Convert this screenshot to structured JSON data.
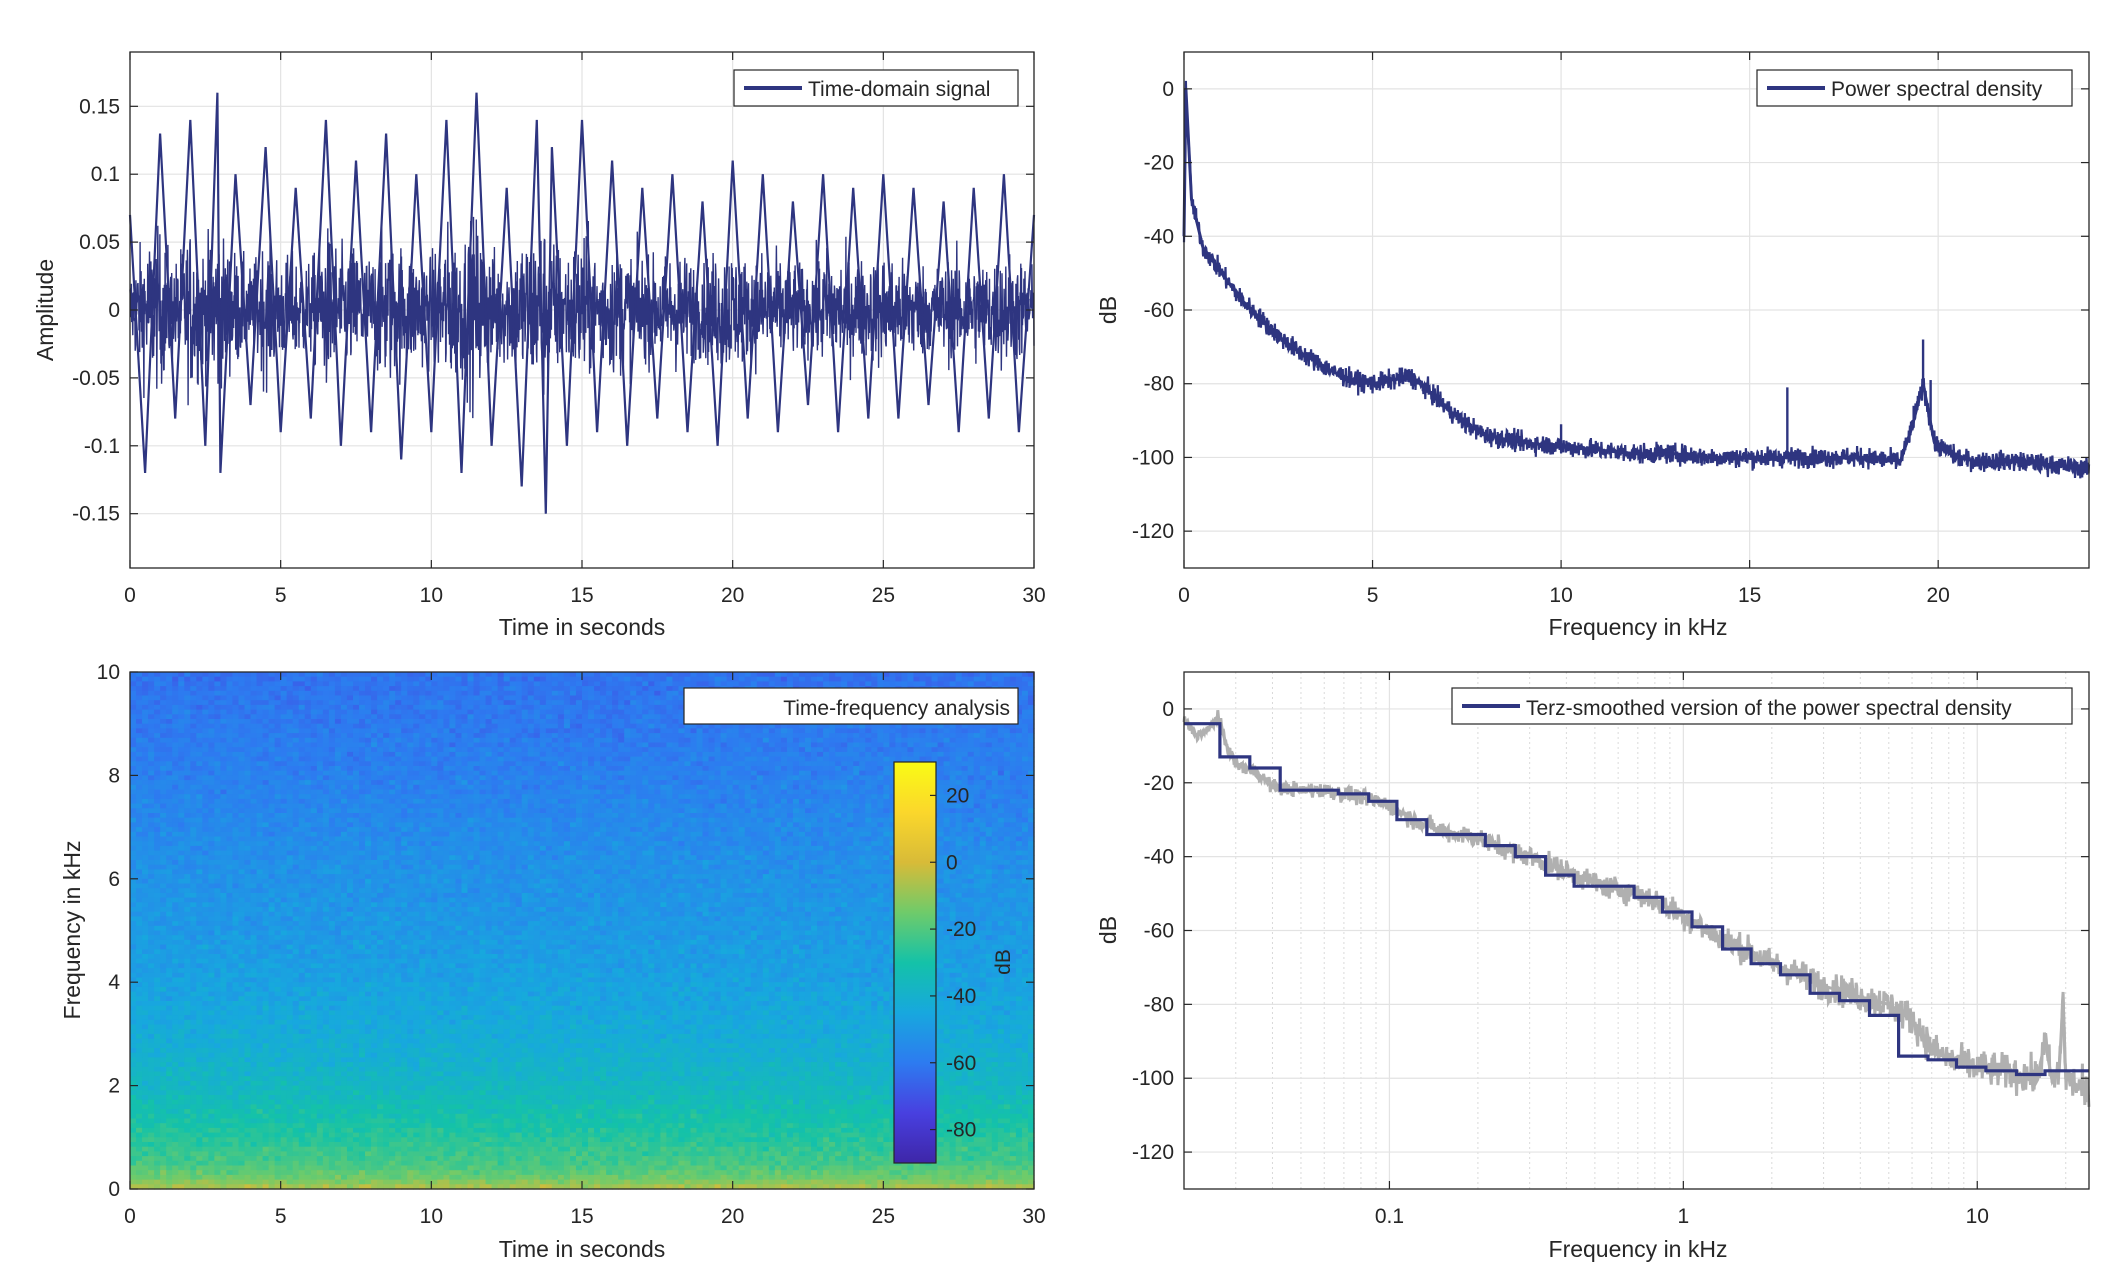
{
  "figure": {
    "background": "#ffffff",
    "line_color": "#2e3580",
    "smooth_gray": "#b0b0b0",
    "grid_color": "#e3e3e3",
    "axis_color": "#262626"
  },
  "chart_data": [
    {
      "id": "time",
      "type": "line",
      "xlabel": "Time in seconds",
      "ylabel": "Amplitude",
      "xlim": [
        0,
        30
      ],
      "ylim": [
        -0.19,
        0.19
      ],
      "xticks": [
        0,
        5,
        10,
        15,
        20,
        25,
        30
      ],
      "xtick_labels": [
        "0",
        "5",
        "10",
        "15",
        "20",
        "25",
        "30"
      ],
      "yticks": [
        -0.15,
        -0.1,
        -0.05,
        0,
        0.05,
        0.1,
        0.15
      ],
      "ytick_labels": [
        "-0.15",
        "-0.1",
        "-0.05",
        "0",
        "0.05",
        "0.1",
        "0.15"
      ],
      "grid": true,
      "legend": {
        "placement": "top-right",
        "entries": [
          "Time-domain signal"
        ]
      },
      "series": [
        {
          "name": "Time-domain signal",
          "x": [
            0,
            0.5,
            1,
            1.5,
            2,
            2.5,
            2.9,
            3,
            3.5,
            4,
            4.5,
            5,
            5.5,
            6,
            6.5,
            7,
            7.5,
            8,
            8.5,
            9,
            9.5,
            10,
            10.5,
            11,
            11.5,
            12,
            12.5,
            13,
            13.5,
            13.8,
            14,
            14.5,
            15,
            15.5,
            16,
            16.5,
            17,
            17.5,
            18,
            18.5,
            19,
            19.5,
            20,
            20.5,
            21,
            21.5,
            22,
            22.5,
            23,
            23.5,
            24,
            24.5,
            25,
            25.5,
            26,
            26.5,
            27,
            27.5,
            28,
            28.5,
            29,
            29.5,
            30
          ],
          "y": [
            0.07,
            -0.12,
            0.13,
            -0.08,
            0.14,
            -0.1,
            0.16,
            -0.12,
            0.1,
            -0.07,
            0.12,
            -0.09,
            0.09,
            -0.08,
            0.14,
            -0.1,
            0.11,
            -0.09,
            0.13,
            -0.11,
            0.1,
            -0.09,
            0.14,
            -0.12,
            0.16,
            -0.1,
            0.09,
            -0.13,
            0.14,
            -0.15,
            0.12,
            -0.1,
            0.14,
            -0.09,
            0.11,
            -0.1,
            0.09,
            -0.08,
            0.1,
            -0.09,
            0.08,
            -0.1,
            0.11,
            -0.08,
            0.1,
            -0.09,
            0.08,
            -0.07,
            0.1,
            -0.09,
            0.09,
            -0.08,
            0.1,
            -0.08,
            0.09,
            -0.07,
            0.08,
            -0.09,
            0.09,
            -0.08,
            0.1,
            -0.09,
            0.07
          ]
        }
      ]
    },
    {
      "id": "psd",
      "type": "line",
      "xlabel": "Frequency in kHz",
      "ylabel": "dB",
      "xlim": [
        0,
        24
      ],
      "ylim": [
        -130,
        10
      ],
      "xticks": [
        0,
        5,
        10,
        15,
        20
      ],
      "xtick_labels": [
        "0",
        "5",
        "10",
        "15",
        "20"
      ],
      "yticks": [
        -120,
        -100,
        -80,
        -60,
        -40,
        -20,
        0
      ],
      "ytick_labels": [
        "-120",
        "-100",
        "-80",
        "-60",
        "-40",
        "-20",
        "0"
      ],
      "grid": true,
      "legend": {
        "placement": "top-right",
        "entries": [
          "Power spectral density"
        ]
      },
      "series": [
        {
          "name": "Power spectral density",
          "x": [
            0,
            0.05,
            0.2,
            0.5,
            1,
            1.5,
            2,
            2.5,
            3,
            3.5,
            4,
            4.5,
            5,
            5.5,
            6,
            6.5,
            7,
            7.5,
            8,
            9,
            10,
            11,
            12,
            13,
            14,
            15,
            16,
            17,
            18,
            19,
            19.3,
            19.6,
            19.9,
            20.5,
            21,
            22,
            23,
            24
          ],
          "y": [
            -40,
            0,
            -30,
            -43,
            -50,
            -57,
            -62,
            -67,
            -71,
            -74,
            -77,
            -79,
            -80,
            -79,
            -78,
            -82,
            -87,
            -91,
            -94,
            -96,
            -97,
            -98,
            -99,
            -99,
            -100,
            -100,
            -100,
            -100,
            -100,
            -101,
            -92,
            -80,
            -96,
            -100,
            -101,
            -101,
            -102,
            -103
          ]
        }
      ],
      "spikes": [
        {
          "x": 10,
          "y": -91
        },
        {
          "x": 16,
          "y": -81
        },
        {
          "x": 19.35,
          "y": -86
        },
        {
          "x": 19.6,
          "y": -68
        },
        {
          "x": 19.8,
          "y": -79
        }
      ]
    },
    {
      "id": "spectrogram",
      "type": "heatmap",
      "xlabel": "Time in seconds",
      "ylabel": "Frequency in kHz",
      "xlim": [
        0,
        30
      ],
      "ylim": [
        0,
        10
      ],
      "xticks": [
        0,
        5,
        10,
        15,
        20,
        25,
        30
      ],
      "xtick_labels": [
        "0",
        "5",
        "10",
        "15",
        "20",
        "25",
        "30"
      ],
      "yticks": [
        0,
        2,
        4,
        6,
        8,
        10
      ],
      "ytick_labels": [
        "0",
        "2",
        "4",
        "6",
        "8",
        "10"
      ],
      "legend": {
        "placement": "top-right",
        "entries": [
          "Time-frequency analysis"
        ]
      },
      "colorbar": {
        "label": "dB",
        "limits": [
          -90,
          30
        ],
        "ticks": [
          20,
          0,
          -20,
          -40,
          -60,
          -80
        ],
        "tick_labels": [
          "20",
          "0",
          "-20",
          "-40",
          "-60",
          "-80"
        ],
        "colormap": [
          "#3e26a8",
          "#4840e0",
          "#2d7bf0",
          "#17a8de",
          "#14c2a8",
          "#6fcb6a",
          "#d8bb38",
          "#fbd72b",
          "#f9fb15"
        ]
      },
      "level_profile": {
        "freq_khz": [
          0,
          0.2,
          0.5,
          1,
          1.5,
          2,
          3,
          4,
          5,
          6,
          7,
          8,
          9,
          10
        ],
        "db": [
          -5,
          -15,
          -22,
          -27,
          -32,
          -37,
          -43,
          -47,
          -50,
          -52,
          -55,
          -58,
          -60,
          -62
        ]
      }
    },
    {
      "id": "terz",
      "type": "line",
      "xlabel": "Frequency in kHz",
      "ylabel": "dB",
      "xscale": "log",
      "xlim": [
        0.02,
        24
      ],
      "ylim": [
        -130,
        10
      ],
      "xticks": [
        0.1,
        1,
        10
      ],
      "xtick_labels": [
        "0.1",
        "1",
        "10"
      ],
      "yticks": [
        -120,
        -100,
        -80,
        -60,
        -40,
        -20,
        0
      ],
      "ytick_labels": [
        "-120",
        "-100",
        "-80",
        "-60",
        "-40",
        "-20",
        "0"
      ],
      "grid": true,
      "legend": {
        "placement": "top-right",
        "entries": [
          "Terz-smoothed version of the power spectral density"
        ]
      },
      "series": [
        {
          "name": "Terz-smoothed version of the power spectral density",
          "x": [
            0.02,
            0.0265,
            0.0265,
            0.0335,
            0.0335,
            0.0425,
            0.0425,
            0.053,
            0.053,
            0.067,
            0.067,
            0.085,
            0.085,
            0.106,
            0.106,
            0.134,
            0.134,
            0.17,
            0.17,
            0.212,
            0.212,
            0.268,
            0.268,
            0.34,
            0.34,
            0.425,
            0.425,
            0.536,
            0.536,
            0.68,
            0.68,
            0.85,
            0.85,
            1.07,
            1.07,
            1.36,
            1.36,
            1.7,
            1.7,
            2.14,
            2.14,
            2.7,
            2.7,
            3.4,
            3.4,
            4.3,
            4.3,
            5.4,
            5.4,
            6.8,
            6.8,
            8.5,
            8.5,
            10.7,
            10.7,
            13.6,
            13.6,
            17,
            17,
            24
          ],
          "y": [
            -4,
            -4,
            -13,
            -13,
            -16,
            -16,
            -22,
            -22,
            -22,
            -22,
            -23,
            -23,
            -25,
            -25,
            -30,
            -30,
            -34,
            -34,
            -34,
            -34,
            -37,
            -37,
            -40,
            -40,
            -45,
            -45,
            -48,
            -48,
            -48,
            -48,
            -51,
            -51,
            -55,
            -55,
            -59,
            -59,
            -65,
            -65,
            -69,
            -69,
            -72,
            -72,
            -77,
            -77,
            -79,
            -79,
            -83,
            -83,
            -94,
            -94,
            -95,
            -95,
            -97,
            -97,
            -98,
            -98,
            -99,
            -99,
            -98,
            -98
          ]
        }
      ],
      "raw_psd": {
        "x": [
          0.02,
          0.022,
          0.024,
          0.026,
          0.028,
          0.03,
          0.035,
          0.04,
          0.05,
          0.06,
          0.07,
          0.08,
          0.1,
          0.12,
          0.15,
          0.2,
          0.25,
          0.3,
          0.4,
          0.5,
          0.6,
          0.7,
          0.8,
          1,
          1.2,
          1.5,
          2,
          2.5,
          3,
          4,
          5,
          6,
          7,
          8,
          9,
          10,
          12,
          14,
          16,
          17,
          18,
          19,
          19.6,
          20,
          21,
          22,
          24
        ],
        "y": [
          -3,
          -7,
          -6,
          -2,
          -10,
          -15,
          -17,
          -21,
          -22,
          -22,
          -23,
          -24,
          -26,
          -30,
          -33,
          -35,
          -38,
          -40,
          -44,
          -47,
          -49,
          -50,
          -52,
          -56,
          -60,
          -64,
          -69,
          -72,
          -75,
          -78,
          -80,
          -84,
          -92,
          -95,
          -96,
          -97,
          -98,
          -99,
          -100,
          -90,
          -101,
          -98,
          -78,
          -100,
          -101,
          -102,
          -105
        ]
      }
    }
  ]
}
